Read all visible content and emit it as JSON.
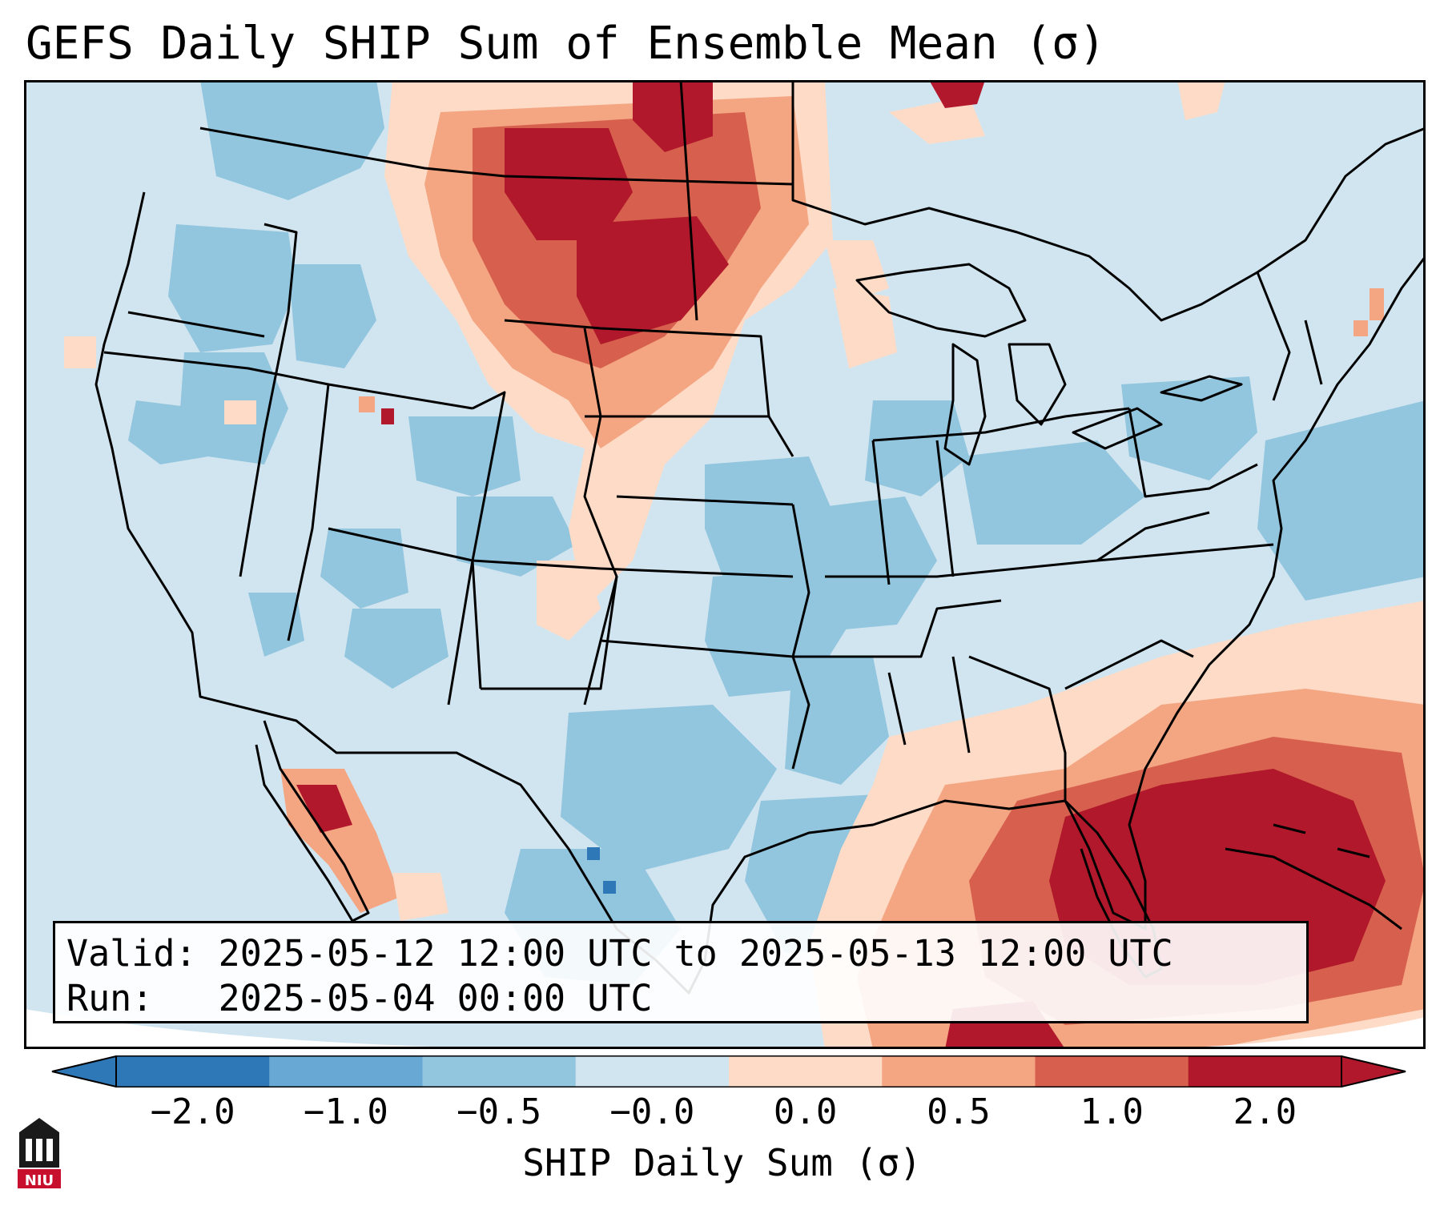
{
  "title": "GEFS Daily SHIP Sum of Ensemble Mean (σ)",
  "info": {
    "valid_line": "Valid: 2025-05-12 12:00 UTC to 2025-05-13 12:00 UTC",
    "run_line": "Run:   2025-05-04 00:00 UTC"
  },
  "colorbar": {
    "label": "SHIP Daily Sum (σ)",
    "ticks": [
      "−2.0",
      "−1.0",
      "−0.5",
      "−0.0",
      "0.0",
      "0.5",
      "1.0",
      "2.0"
    ],
    "colors": [
      "#2e78b7",
      "#67a9d4",
      "#92c5de",
      "#d1e5f0",
      "#fddbc7",
      "#f4a582",
      "#d6604d",
      "#b2182b"
    ],
    "extend": "both"
  },
  "map": {
    "region": "Contiguous United States",
    "background_color": "#d1e5f0"
  },
  "logo": {
    "text": "NIU",
    "icon": "university-seal-icon"
  }
}
